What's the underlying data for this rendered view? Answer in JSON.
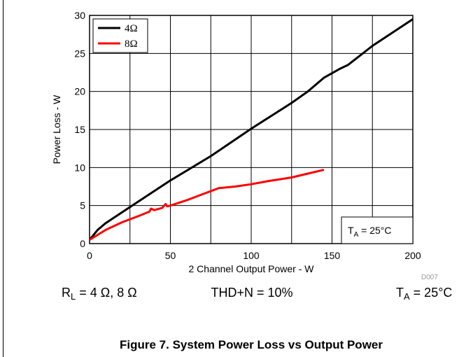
{
  "chart_data": {
    "type": "line",
    "xlabel": "2 Channel Output Power - W",
    "ylabel": "Power Loss - W",
    "xlim": [
      0,
      200
    ],
    "xticks": [
      0,
      50,
      100,
      150,
      200
    ],
    "x_minor_ticks": [
      25,
      75,
      125,
      175
    ],
    "ylim": [
      0,
      30
    ],
    "yticks": [
      0,
      5,
      10,
      15,
      20,
      25,
      30
    ],
    "grid": true,
    "legend": "upper left",
    "annotation": {
      "symbol": "T",
      "subscript": "A",
      "text": " = 25°C"
    },
    "series": [
      {
        "name": "4Ω",
        "color": "#000000",
        "x": [
          0,
          5,
          10,
          25,
          50,
          75,
          100,
          125,
          135,
          145,
          155,
          160,
          175,
          200
        ],
        "values": [
          0.5,
          1.8,
          2.7,
          4.8,
          8.3,
          11.5,
          15.1,
          18.5,
          20,
          21.8,
          23,
          23.5,
          26,
          29.5
        ]
      },
      {
        "name": "8Ω",
        "color": "#ff0000",
        "x": [
          0,
          10,
          20,
          30,
          37,
          38,
          40,
          45,
          47,
          48,
          50,
          60,
          70,
          80,
          90,
          100,
          110,
          125,
          135,
          145
        ],
        "values": [
          0.5,
          1.8,
          2.8,
          3.6,
          4.2,
          4.6,
          4.4,
          4.7,
          5.2,
          4.9,
          5.0,
          5.7,
          6.5,
          7.3,
          7.5,
          7.8,
          8.2,
          8.7,
          9.2,
          9.7
        ]
      }
    ]
  },
  "figure_id": "D007",
  "conditions": [
    {
      "symbol": "R",
      "subscript": "L",
      "text": " = 4 Ω, 8 Ω"
    },
    {
      "text": "THD+N = 10%"
    },
    {
      "symbol": "T",
      "subscript": "A",
      "text": " = 25°C"
    }
  ],
  "caption": "Figure 7. System Power Loss vs Output Power"
}
